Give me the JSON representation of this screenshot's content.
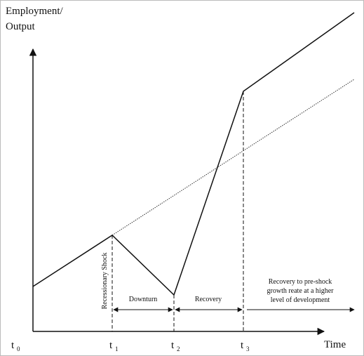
{
  "y_axis_label": [
    "Employment/",
    "Output"
  ],
  "x_axis_label": "Time",
  "time_labels": [
    {
      "base": "t",
      "sub": "0"
    },
    {
      "base": "t",
      "sub": "1"
    },
    {
      "base": "t",
      "sub": "2"
    },
    {
      "base": "t",
      "sub": "3"
    }
  ],
  "annotations": {
    "shock": "Recessionary Shock",
    "downturn": "Downturn",
    "recovery": "Recovery",
    "long_run": [
      "Recovery to pre-shock",
      "growth reate at a higher",
      "level of development"
    ]
  }
}
